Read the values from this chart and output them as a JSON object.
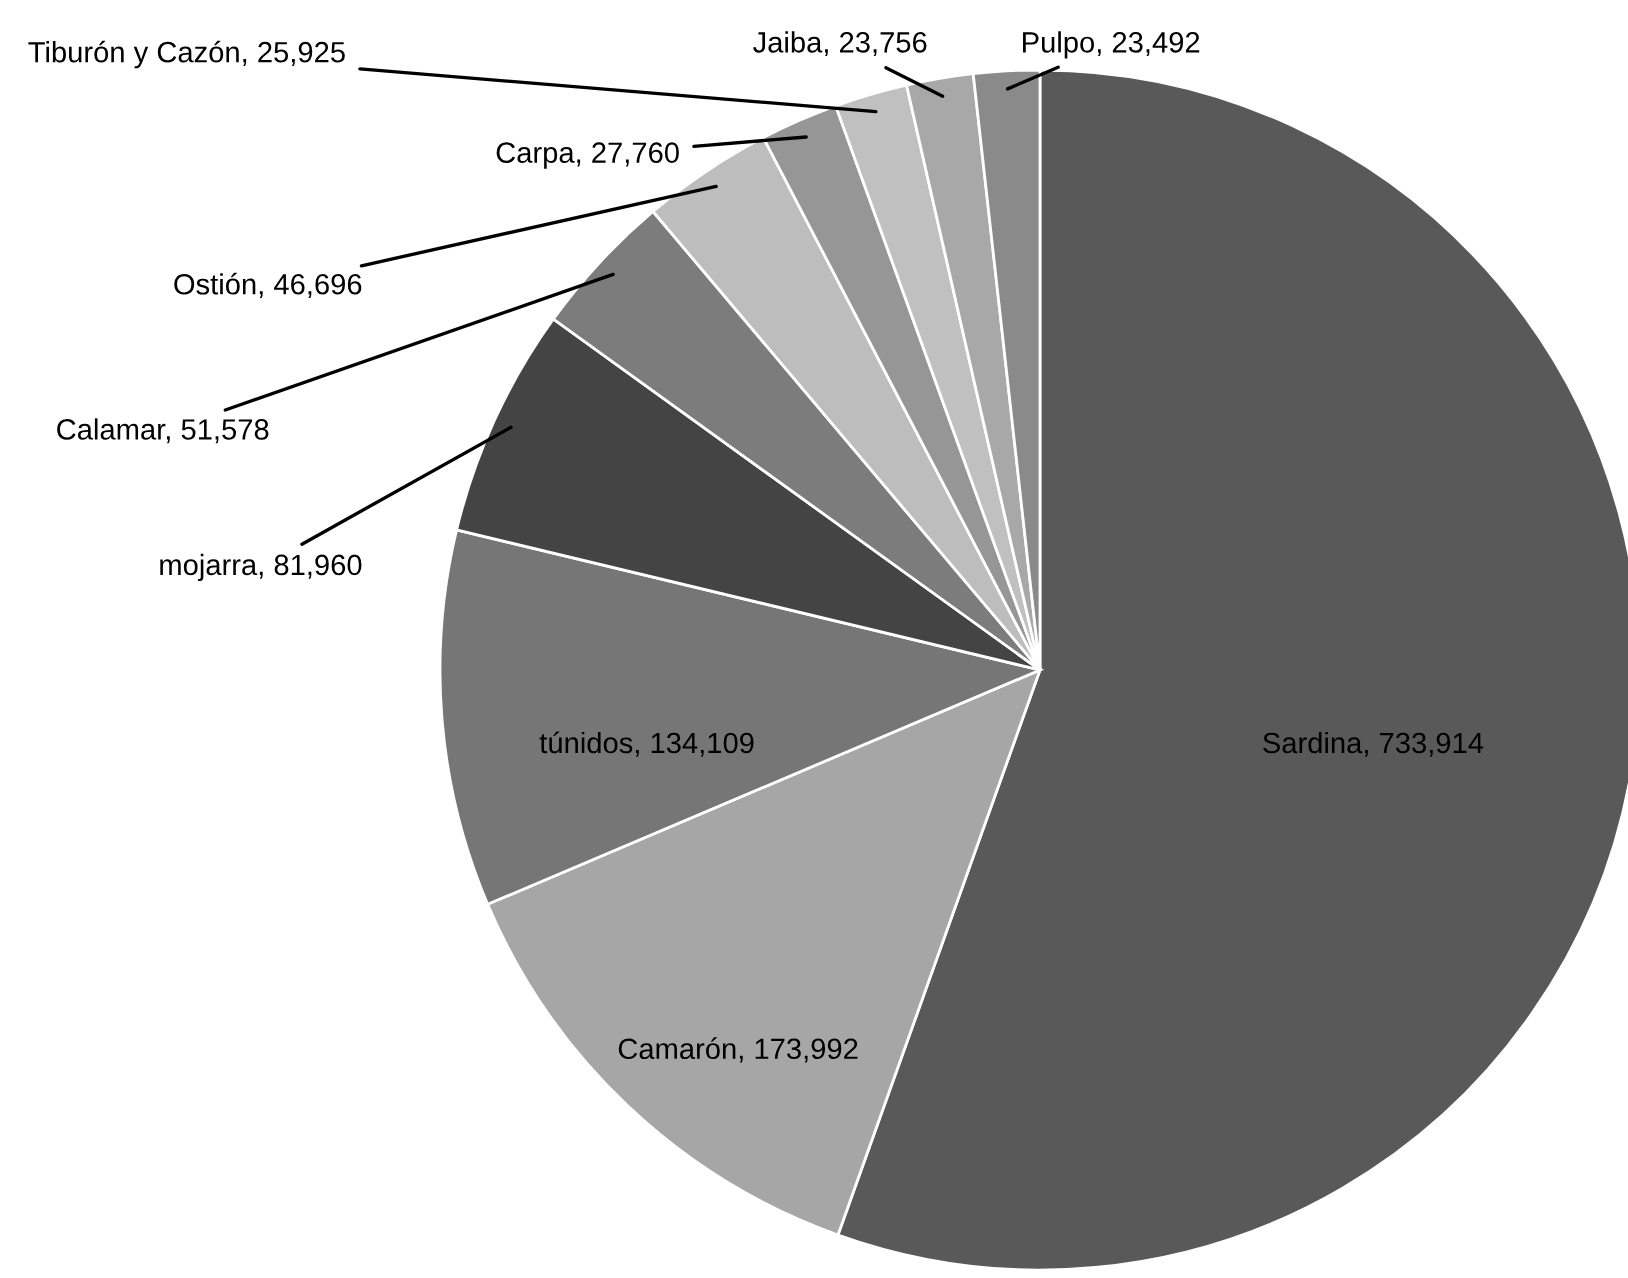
{
  "chart_data": {
    "type": "pie",
    "categories": [
      "Sardina",
      "Camarón",
      "túnidos",
      "mojarra",
      "Calamar",
      "Ostión",
      "Carpa",
      "Tiburón y Cazón",
      "Jaiba",
      "Pulpo"
    ],
    "values": [
      733914,
      173992,
      134109,
      81960,
      51578,
      46696,
      27760,
      25925,
      23756,
      23492
    ],
    "colors": [
      "#595959",
      "#a6a6a6",
      "#767676",
      "#444444",
      "#7c7c7c",
      "#bdbdbd",
      "#969696",
      "#c0c0c0",
      "#a8a8a8",
      "#8a8a8a"
    ],
    "value_labels": [
      "733,914",
      "173,992",
      "134,109",
      "81,960",
      "51,578",
      "46,696",
      "27,760",
      "25,925",
      "23,756",
      "23,492"
    ],
    "legend": false
  }
}
